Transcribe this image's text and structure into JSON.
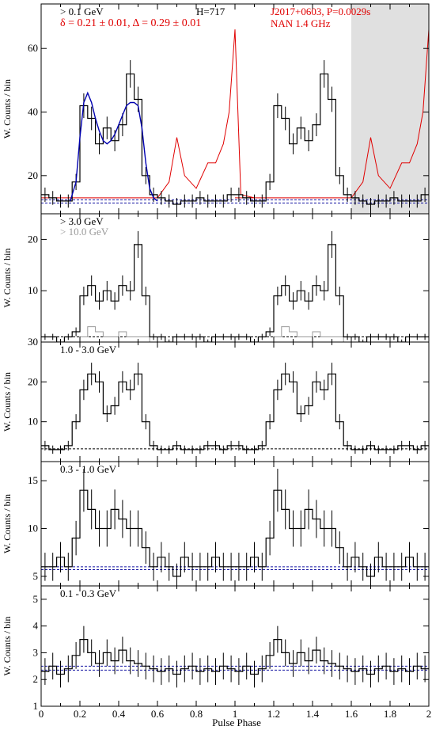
{
  "figure": {
    "xlabel": "Pulse Phase",
    "ylabel": "W. Counts / bin",
    "x_ticks": [
      "0",
      "0.2",
      "0.4",
      "0.6",
      "0.8",
      "1",
      "1.2",
      "1.4",
      "1.6",
      "1.8",
      "2"
    ]
  },
  "chart_data": [
    {
      "type": "line",
      "name": "panel-0.1GeV",
      "energy_label": "> 0.1 GeV",
      "h_label": "H=717",
      "fit_label": "δ = 0.21 ± 0.01, Δ = 0.29 ± 0.01",
      "source_label": "J2017+0603, P=0.0029s",
      "radio_label": "NAN 1.4 GHz",
      "ylim": [
        8,
        74
      ],
      "y_ticks": [
        20,
        40,
        60
      ],
      "shaded_x": [
        1.6,
        2.0
      ],
      "background_levels": [
        11.4,
        12.4
      ],
      "x": [
        0.02,
        0.06,
        0.1,
        0.14,
        0.18,
        0.22,
        0.26,
        0.3,
        0.34,
        0.38,
        0.42,
        0.46,
        0.5,
        0.54,
        0.58,
        0.62,
        0.66,
        0.7,
        0.74,
        0.78,
        0.82,
        0.86,
        0.9,
        0.94,
        0.98
      ],
      "gamma": [
        14,
        13,
        12,
        12,
        18,
        42,
        38,
        30,
        35,
        31,
        36,
        52,
        44,
        20,
        14,
        13,
        12,
        11,
        12,
        12,
        13,
        12,
        12,
        12,
        14
      ],
      "gamma_fit_x": [
        0.15,
        0.18,
        0.2,
        0.22,
        0.24,
        0.26,
        0.28,
        0.3,
        0.32,
        0.34,
        0.36,
        0.38,
        0.4,
        0.42,
        0.44,
        0.46,
        0.48,
        0.5,
        0.52,
        0.54,
        0.56,
        0.58,
        0.6
      ],
      "gamma_fit": [
        12,
        18,
        32,
        43,
        46,
        43,
        38,
        34,
        31,
        30,
        31,
        33,
        36,
        39,
        42,
        43,
        43,
        42,
        35,
        24,
        16,
        13,
        12
      ],
      "radio_x": [
        0.0,
        0.1,
        0.2,
        0.3,
        0.4,
        0.5,
        0.6,
        0.66,
        0.7,
        0.74,
        0.8,
        0.86,
        0.9,
        0.94,
        0.97,
        1.0,
        1.03,
        1.1
      ],
      "radio": [
        13,
        13,
        13,
        13,
        13,
        13,
        13,
        18,
        32,
        20,
        16,
        24,
        24,
        30,
        40,
        66,
        14,
        13
      ]
    },
    {
      "type": "line",
      "name": "panel-3GeV",
      "energy_label": "> 3.0 GeV",
      "energy_label_2": "> 10.0 GeV",
      "ylim": [
        0,
        25
      ],
      "y_ticks": [
        10,
        20
      ],
      "background_levels": [
        1.0
      ],
      "x": [
        0.02,
        0.06,
        0.1,
        0.14,
        0.18,
        0.22,
        0.26,
        0.3,
        0.34,
        0.38,
        0.42,
        0.46,
        0.5,
        0.54,
        0.58,
        0.62,
        0.66,
        0.7,
        0.74,
        0.78,
        0.82,
        0.86,
        0.9,
        0.94,
        0.98
      ],
      "gamma": [
        1,
        1,
        0,
        1,
        2,
        9,
        11,
        8,
        10,
        8,
        11,
        10,
        19,
        9,
        1,
        1,
        0,
        1,
        1,
        1,
        1,
        0,
        1,
        1,
        1
      ],
      "gamma_hi": [
        0,
        0,
        0,
        0,
        0,
        1,
        3,
        2,
        1,
        1,
        2,
        1,
        1,
        1,
        0,
        0,
        0,
        0,
        0,
        0,
        0,
        0,
        0,
        0,
        0
      ]
    },
    {
      "type": "line",
      "name": "panel-1to3GeV",
      "energy_label": "1.0 - 3.0 GeV",
      "ylim": [
        0,
        30
      ],
      "y_ticks": [
        10,
        20,
        30
      ],
      "background_levels": [
        3.2
      ],
      "x": [
        0.02,
        0.06,
        0.1,
        0.14,
        0.18,
        0.22,
        0.26,
        0.3,
        0.34,
        0.38,
        0.42,
        0.46,
        0.5,
        0.54,
        0.58,
        0.62,
        0.66,
        0.7,
        0.74,
        0.78,
        0.82,
        0.86,
        0.9,
        0.94,
        0.98
      ],
      "gamma": [
        4,
        3,
        3,
        4,
        10,
        18,
        22,
        20,
        12,
        14,
        20,
        18,
        22,
        10,
        4,
        3,
        3,
        4,
        3,
        3,
        3,
        4,
        4,
        3,
        4
      ]
    },
    {
      "type": "line",
      "name": "panel-0.3to1GeV",
      "energy_label": "0.3 - 1.0 GeV",
      "ylim": [
        4,
        17
      ],
      "y_ticks": [
        5,
        10,
        15
      ],
      "background_levels": [
        5.7,
        6.0
      ],
      "x": [
        0.02,
        0.06,
        0.1,
        0.14,
        0.18,
        0.22,
        0.26,
        0.3,
        0.34,
        0.38,
        0.42,
        0.46,
        0.5,
        0.54,
        0.58,
        0.62,
        0.66,
        0.7,
        0.74,
        0.78,
        0.82,
        0.86,
        0.9,
        0.94,
        0.98
      ],
      "gamma": [
        6,
        6,
        7,
        6,
        9,
        14,
        12,
        10,
        10,
        12,
        11,
        10,
        10,
        8,
        6,
        7,
        6,
        5,
        7,
        6,
        6,
        6,
        7,
        6,
        6
      ]
    },
    {
      "type": "line",
      "name": "panel-0.1to0.3GeV",
      "energy_label": "0.1 - 0.3 GeV",
      "ylim": [
        1,
        5.5
      ],
      "y_ticks": [
        1,
        2,
        3,
        4,
        5
      ],
      "background_levels": [
        2.35,
        2.5
      ],
      "x": [
        0.02,
        0.06,
        0.1,
        0.14,
        0.18,
        0.22,
        0.26,
        0.3,
        0.34,
        0.38,
        0.42,
        0.46,
        0.5,
        0.54,
        0.58,
        0.62,
        0.66,
        0.7,
        0.74,
        0.78,
        0.82,
        0.86,
        0.9,
        0.94,
        0.98
      ],
      "gamma": [
        2.3,
        2.5,
        2.2,
        2.4,
        2.9,
        3.5,
        3.0,
        2.6,
        3.0,
        2.7,
        3.1,
        2.7,
        2.6,
        2.5,
        2.4,
        2.3,
        2.4,
        2.2,
        2.4,
        2.5,
        2.3,
        2.4,
        2.3,
        2.5,
        2.4
      ]
    }
  ]
}
